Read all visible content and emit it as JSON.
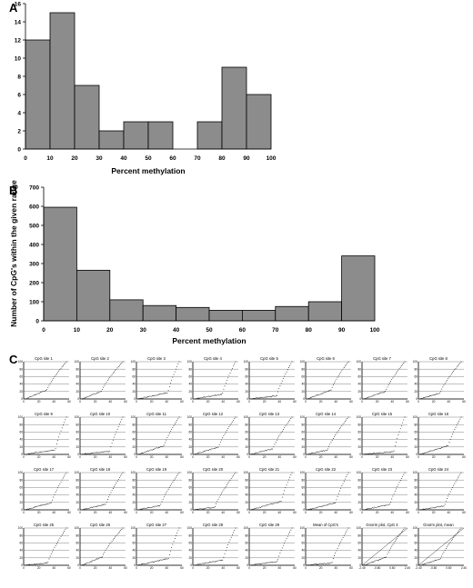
{
  "panels": {
    "a_letter": "A",
    "b_letter": "B",
    "c_letter": "C"
  },
  "chart_data": [
    {
      "type": "bar",
      "xlabel": "Percent methylation",
      "ylabel": "",
      "bin_edges": [
        0,
        10,
        20,
        30,
        40,
        50,
        60,
        70,
        80,
        90,
        100
      ],
      "values": [
        12,
        15,
        7,
        2,
        3,
        3,
        0,
        3,
        9,
        6
      ],
      "x_ticks": [
        "0",
        "10",
        "20",
        "30",
        "40",
        "50",
        "60",
        "70",
        "80",
        "90",
        "100"
      ],
      "y_ticks": [
        "0",
        "2",
        "4",
        "6",
        "8",
        "10",
        "12",
        "14",
        "16"
      ],
      "ylim": [
        0,
        16
      ],
      "grid": false
    },
    {
      "type": "bar",
      "xlabel": "Percent methylation",
      "ylabel": "Number of CpG's within the given range",
      "bin_edges": [
        0,
        10,
        20,
        30,
        40,
        50,
        60,
        70,
        80,
        90,
        100
      ],
      "values": [
        595,
        265,
        110,
        80,
        70,
        55,
        55,
        75,
        100,
        340
      ],
      "x_ticks": [
        "0",
        "10",
        "20",
        "30",
        "40",
        "50",
        "60",
        "70",
        "80",
        "90",
        "100"
      ],
      "y_ticks": [
        "0",
        "100",
        "200",
        "300",
        "400",
        "500",
        "600",
        "700"
      ],
      "ylim": [
        0,
        700
      ],
      "grid": false
    },
    {
      "type": "scatter",
      "layout": "grid of 32 small cumulative plots",
      "titles": [
        "CpG site 1",
        "CpG site 2",
        "CpG site 3",
        "CpG site 4",
        "CpG site 5",
        "CpG site 6",
        "CpG site 7",
        "CpG site 8",
        "CpG site 9",
        "CpG site 10",
        "CpG site 11",
        "CpG site 12",
        "CpG site 13",
        "CpG site 14",
        "CpG site 15",
        "CpG site 16",
        "CpG site 17",
        "CpG site 18",
        "CpG site 19",
        "CpG site 20",
        "CpG site 21",
        "CpG site 22",
        "CpG site 23",
        "CpG site 24",
        "CpG site 25",
        "CpG site 26",
        "CpG site 27",
        "CpG site 28",
        "CpG site 29",
        "Mean of CpG's",
        "Gnorm plot, CpG 4",
        "Gnorm plot, mean"
      ],
      "y_ticks": [
        "0",
        "20",
        "40",
        "60",
        "80",
        "100"
      ],
      "x_ticks": [
        "0",
        "20",
        "40",
        "60"
      ],
      "gnorm_x_ticks": [
        "-2.40",
        "-0.60",
        "0.60",
        "2.40"
      ],
      "ylim": [
        0,
        100
      ],
      "grid": true
    }
  ]
}
